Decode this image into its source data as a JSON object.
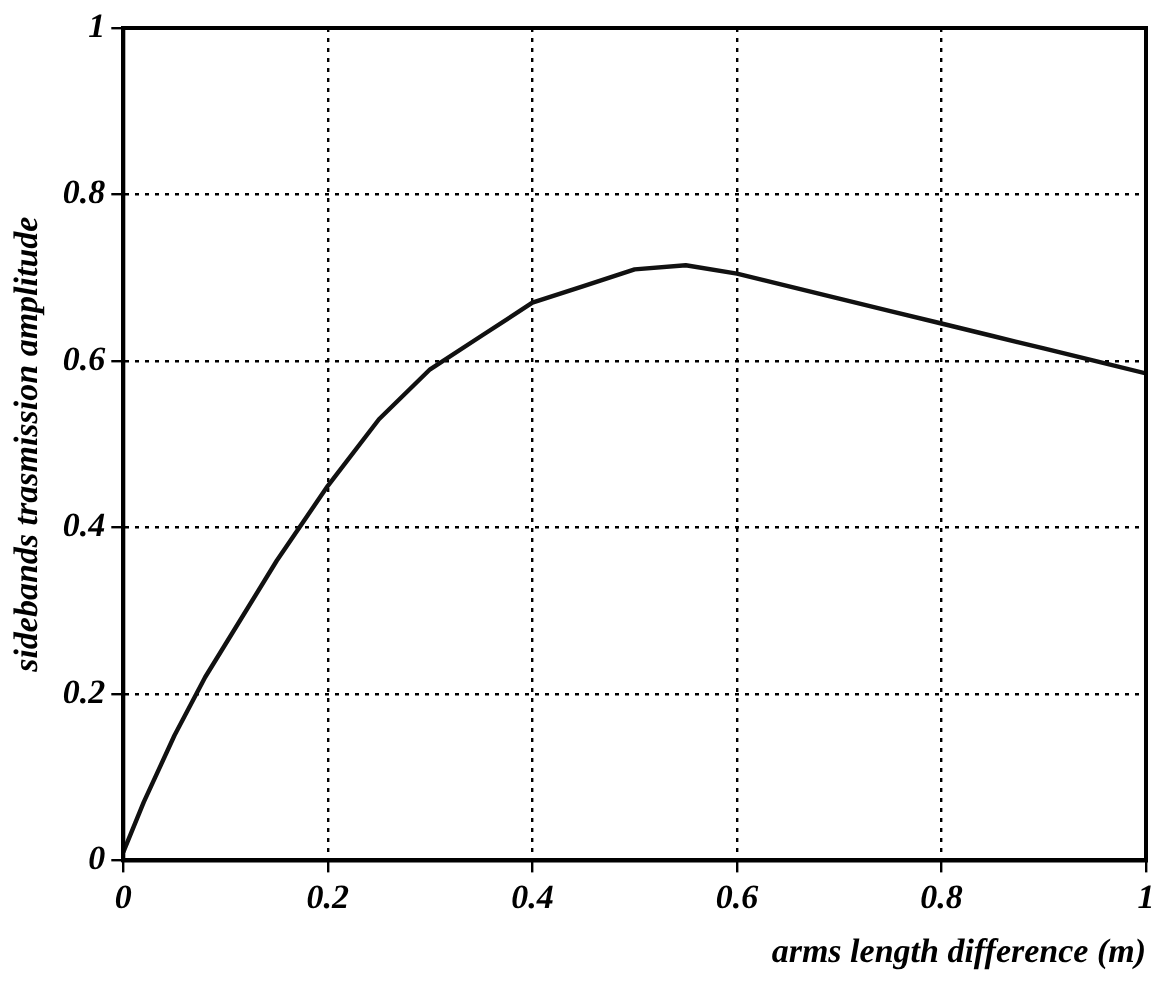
{
  "chart_data": {
    "type": "line",
    "xlabel": "arms length difference (m)",
    "ylabel": "sidebands trasmission amplitude",
    "series": [
      {
        "color": "#111111",
        "x": [
          0,
          0.02,
          0.05,
          0.08,
          0.1,
          0.15,
          0.2,
          0.25,
          0.3,
          0.35,
          0.4,
          0.45,
          0.5,
          0.55,
          0.6,
          0.65,
          0.7,
          0.75,
          0.8,
          0.85,
          0.9,
          0.95,
          1.0
        ],
        "values": [
          0.01,
          0.07,
          0.15,
          0.22,
          0.26,
          0.36,
          0.45,
          0.53,
          0.59,
          0.63,
          0.67,
          0.69,
          0.71,
          0.715,
          0.705,
          0.69,
          0.675,
          0.66,
          0.645,
          0.63,
          0.615,
          0.6,
          0.585
        ]
      }
    ],
    "xlim": [
      0,
      1
    ],
    "ylim": [
      0,
      1
    ],
    "xticks": [
      0,
      0.2,
      0.4,
      0.6,
      0.8,
      1
    ],
    "yticks": [
      0,
      0.2,
      0.4,
      0.6,
      0.8,
      1
    ],
    "grid": true,
    "line_style": "solid",
    "marker": "none",
    "legend": false
  }
}
